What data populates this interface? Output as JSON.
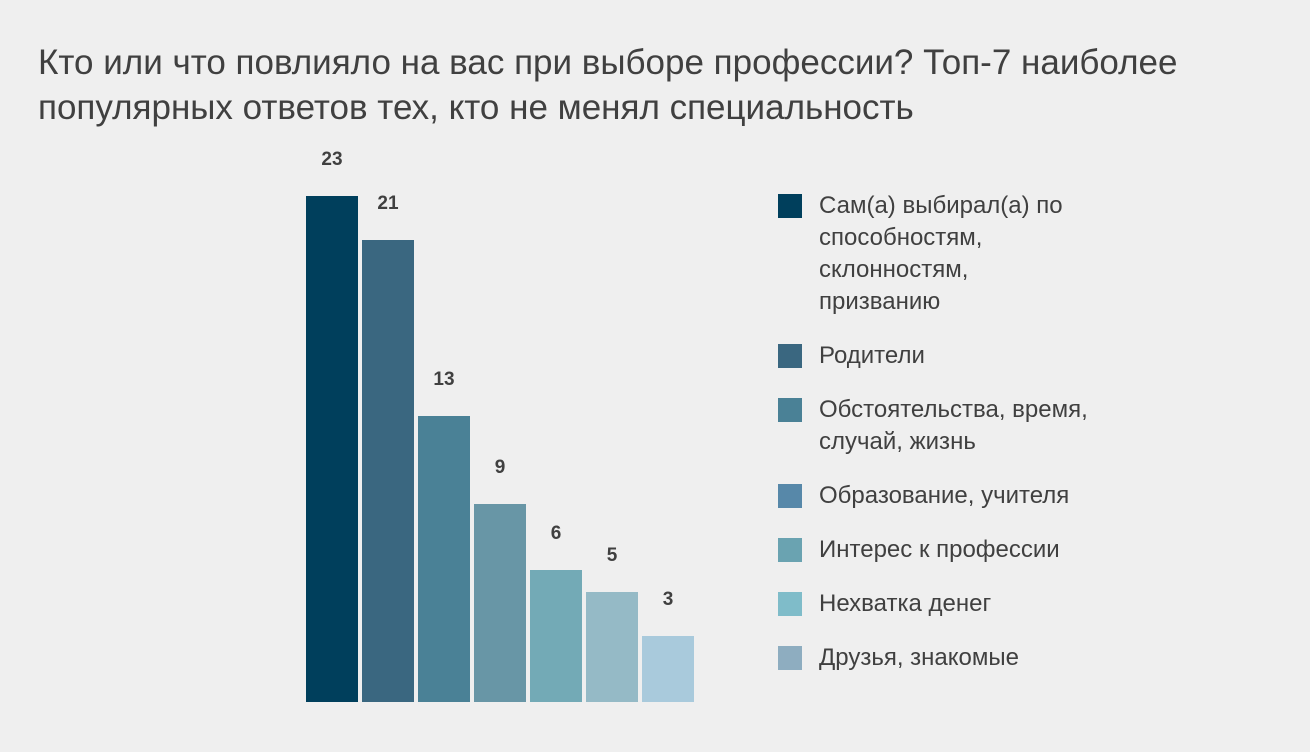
{
  "title": "Кто или что повлияло на вас при выборе профессии? Топ-7 наиболее популярных ответов тех, кто не менял специальность",
  "chart_data": {
    "type": "bar",
    "title": "Кто или что повлияло на вас при выборе профессии? Топ-7 наиболее популярных ответов тех, кто не менял специальность",
    "categories": [
      "Сам(а) выбирал(а) по способностям, склонностям, призванию",
      "Родители",
      "Обстоятельства, время, случай, жизнь",
      "Образование, учителя",
      "Интерес к профессии",
      "Нехватка денег",
      "Друзья, знакомые"
    ],
    "values": [
      23,
      21,
      13,
      9,
      6,
      5,
      3
    ],
    "data_labels": [
      "23",
      "21",
      "13",
      "9",
      "6",
      "5",
      "3"
    ],
    "bar_colors": [
      "#003f5c",
      "#3a6780",
      "#4a8196",
      "#6896a6",
      "#73aab6",
      "#95bac6",
      "#a9cadc"
    ],
    "legend_colors": [
      "#003f5c",
      "#3a6780",
      "#4a8196",
      "#5788a9",
      "#6aa3b1",
      "#7fbcc9",
      "#8eadc0"
    ],
    "ylim": [
      0,
      23
    ],
    "grid": false,
    "legend_position": "right"
  }
}
